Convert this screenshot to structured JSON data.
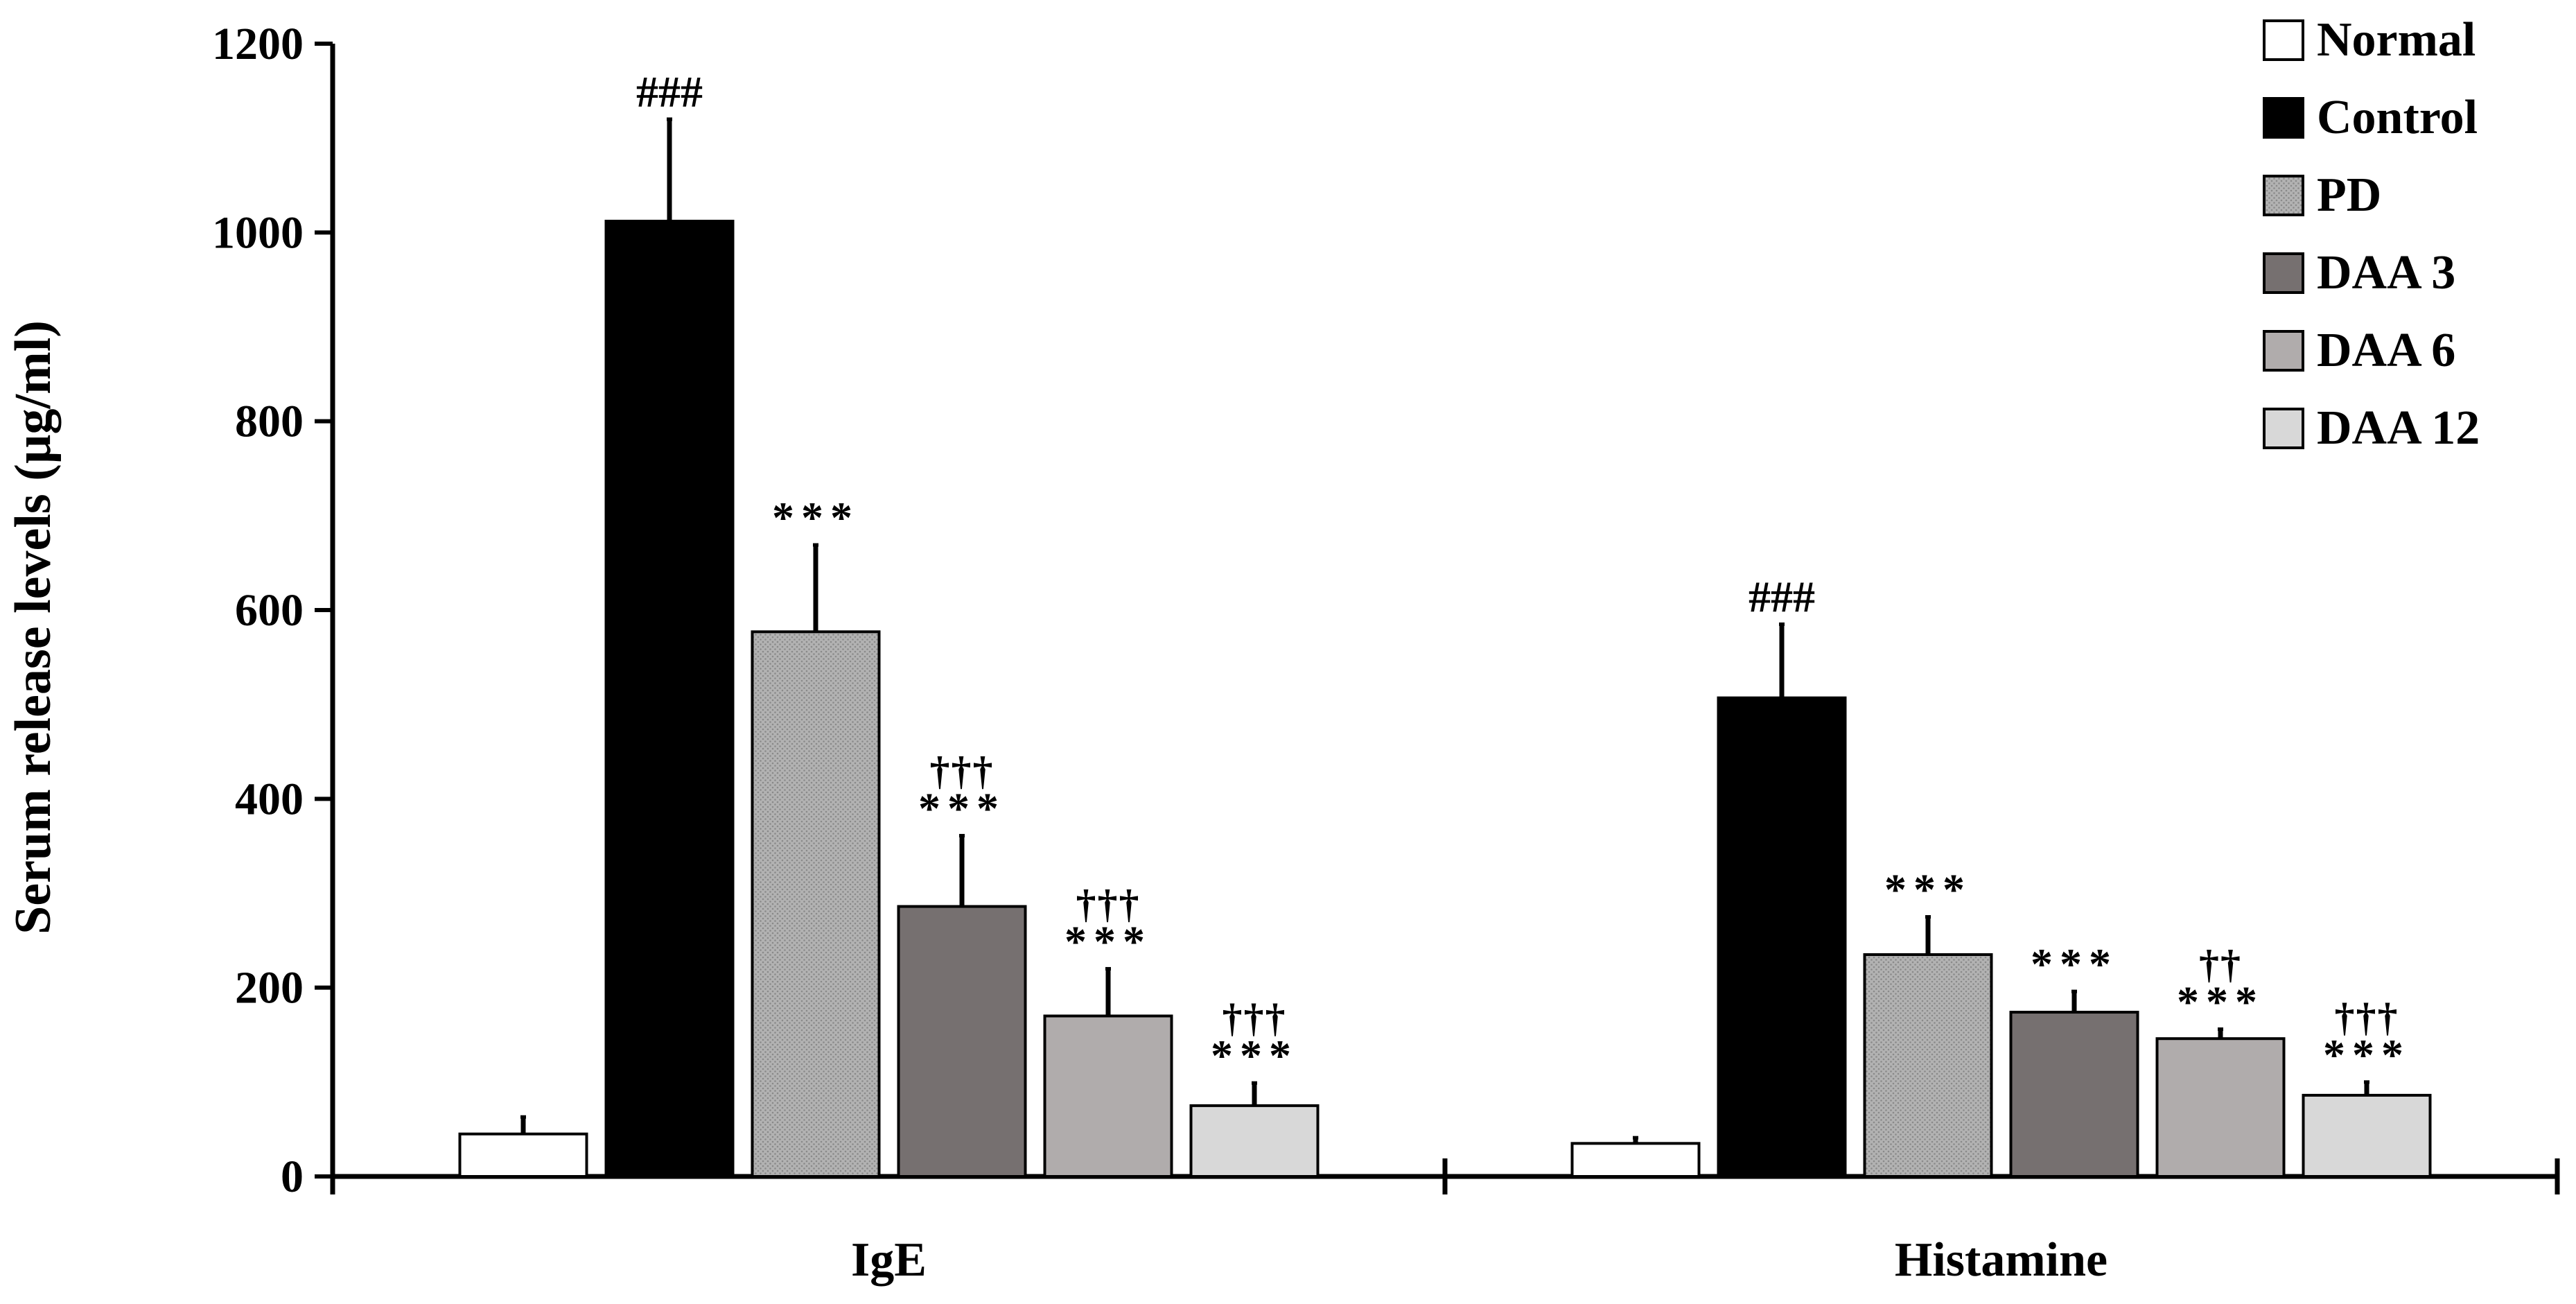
{
  "chart_data": {
    "type": "bar",
    "title": "",
    "xlabel": "",
    "ylabel": "Serum release levels (µg/ml)",
    "ylim": [
      0,
      1200
    ],
    "yticks": [
      {
        "value": 0,
        "label": "0"
      },
      {
        "value": 200,
        "label": "200"
      },
      {
        "value": 400,
        "label": "400"
      },
      {
        "value": 600,
        "label": "600"
      },
      {
        "value": 800,
        "label": "800"
      },
      {
        "value": 1000,
        "label": "1000"
      },
      {
        "value": 1200,
        "label": "1200"
      }
    ],
    "categories": [
      "IgE",
      "Histamine"
    ],
    "legend_position": "top-right",
    "series": [
      {
        "name": "Normal",
        "color": "#ffffff",
        "pattern": "none",
        "values": [
          45,
          35
        ],
        "errors": [
          18,
          6
        ],
        "annotations": [
          {
            "stars": "",
            "daggers": ""
          },
          {
            "stars": "",
            "daggers": ""
          }
        ]
      },
      {
        "name": "Control",
        "color": "#000000",
        "pattern": "none",
        "values": [
          1012,
          507
        ],
        "errors": [
          108,
          78
        ],
        "annotations": [
          {
            "stars": "###",
            "daggers": ""
          },
          {
            "stars": "###",
            "daggers": ""
          }
        ]
      },
      {
        "name": "PD",
        "color": "#aaaaaa",
        "pattern": "dots",
        "values": [
          577,
          235
        ],
        "errors": [
          92,
          40
        ],
        "annotations": [
          {
            "stars": "***",
            "daggers": ""
          },
          {
            "stars": "***",
            "daggers": ""
          }
        ]
      },
      {
        "name": "DAA 3",
        "color": "#767070",
        "pattern": "none",
        "values": [
          286,
          174
        ],
        "errors": [
          75,
          22
        ],
        "annotations": [
          {
            "stars": "***",
            "daggers": "†††"
          },
          {
            "stars": "***",
            "daggers": ""
          }
        ]
      },
      {
        "name": "DAA 6",
        "color": "#b0acac",
        "pattern": "none",
        "values": [
          170,
          146
        ],
        "errors": [
          50,
          10
        ],
        "annotations": [
          {
            "stars": "***",
            "daggers": "†††"
          },
          {
            "stars": "***",
            "daggers": "††"
          }
        ]
      },
      {
        "name": "DAA 12",
        "color": "#d8d8d8",
        "pattern": "none",
        "values": [
          75,
          86
        ],
        "errors": [
          24,
          14
        ],
        "annotations": [
          {
            "stars": "***",
            "daggers": "†††"
          },
          {
            "stars": "***",
            "daggers": "†††"
          }
        ]
      }
    ]
  }
}
